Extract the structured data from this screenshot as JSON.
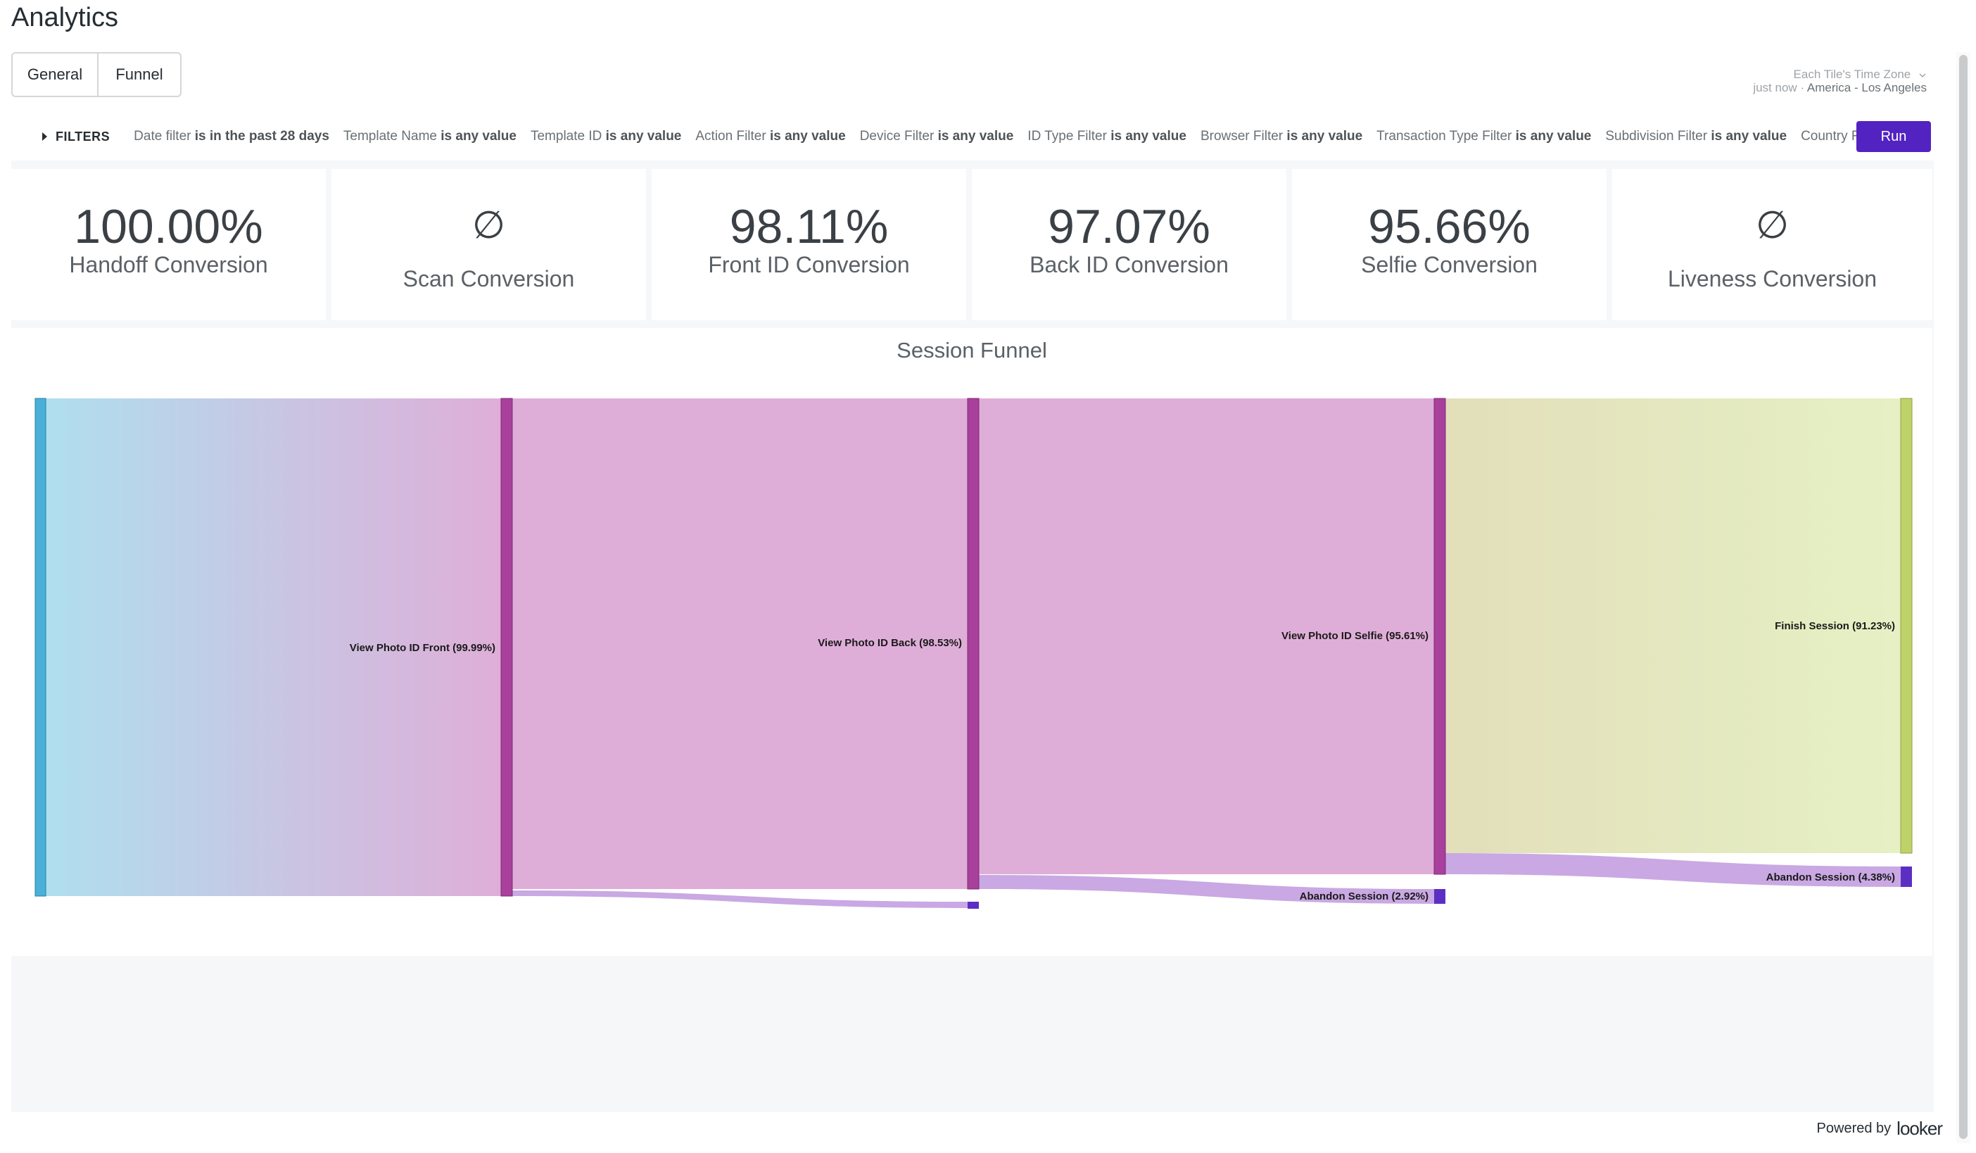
{
  "app": {
    "title": "Analytics"
  },
  "tabs": [
    {
      "label": "General"
    },
    {
      "label": "Funnel"
    }
  ],
  "timezone": {
    "label": "Each Tile's Time Zone",
    "updated": "just now",
    "separator": "·",
    "zone": "America - Los Angeles"
  },
  "filters": {
    "toggle_label": "FILTERS",
    "items": [
      {
        "name": "Date filter",
        "value": "is in the past 28 days"
      },
      {
        "name": "Template Name",
        "value": "is any value"
      },
      {
        "name": "Template ID",
        "value": "is any value"
      },
      {
        "name": "Action Filter",
        "value": "is any value"
      },
      {
        "name": "Device Filter",
        "value": "is any value"
      },
      {
        "name": "ID Type Filter",
        "value": "is any value"
      },
      {
        "name": "Browser Filter",
        "value": "is any value"
      },
      {
        "name": "Transaction Type Filter",
        "value": "is any value"
      },
      {
        "name": "Subdivision Filter",
        "value": "is any value"
      },
      {
        "name": "Country F",
        "value": ""
      }
    ],
    "run_label": "Run"
  },
  "tiles": [
    {
      "value": "100.00%",
      "label": "Handoff Conversion"
    },
    {
      "value": "∅",
      "label": "Scan Conversion"
    },
    {
      "value": "98.11%",
      "label": "Front ID Conversion"
    },
    {
      "value": "97.07%",
      "label": "Back ID Conversion"
    },
    {
      "value": "95.66%",
      "label": "Selfie Conversion"
    },
    {
      "value": "∅",
      "label": "Liveness Conversion"
    }
  ],
  "funnel": {
    "title": "Session Funnel",
    "colors": {
      "start": "#4ab0d8",
      "step": "#a8409c",
      "finish": "#bfd26a",
      "abandon": "#5b2fc4"
    },
    "node_labels": {
      "front": "View Photo ID Front (99.99%)",
      "back": "View Photo ID Back (98.53%)",
      "selfie": "View Photo ID Selfie (95.61%)",
      "finish": "Finish Session (91.23%)",
      "abandon_selfie": "Abandon Session (2.92%)",
      "abandon_finish": "Abandon Session (4.38%)"
    }
  },
  "chart_data": {
    "type": "sankey",
    "title": "Session Funnel",
    "nodes": [
      {
        "name": "",
        "value": 100.0
      },
      {
        "name": "View Photo ID Front",
        "value": 99.99
      },
      {
        "name": "View Photo ID Back",
        "value": 98.53
      },
      {
        "name": "View Photo ID Selfie",
        "value": 95.61
      },
      {
        "name": "Finish Session",
        "value": 91.23
      },
      {
        "name": "Abandon Session",
        "value": 2.92
      },
      {
        "name": "Abandon Session",
        "value": 4.38
      }
    ]
  },
  "footer": {
    "powered_by": "Powered by",
    "logo": "looker"
  }
}
